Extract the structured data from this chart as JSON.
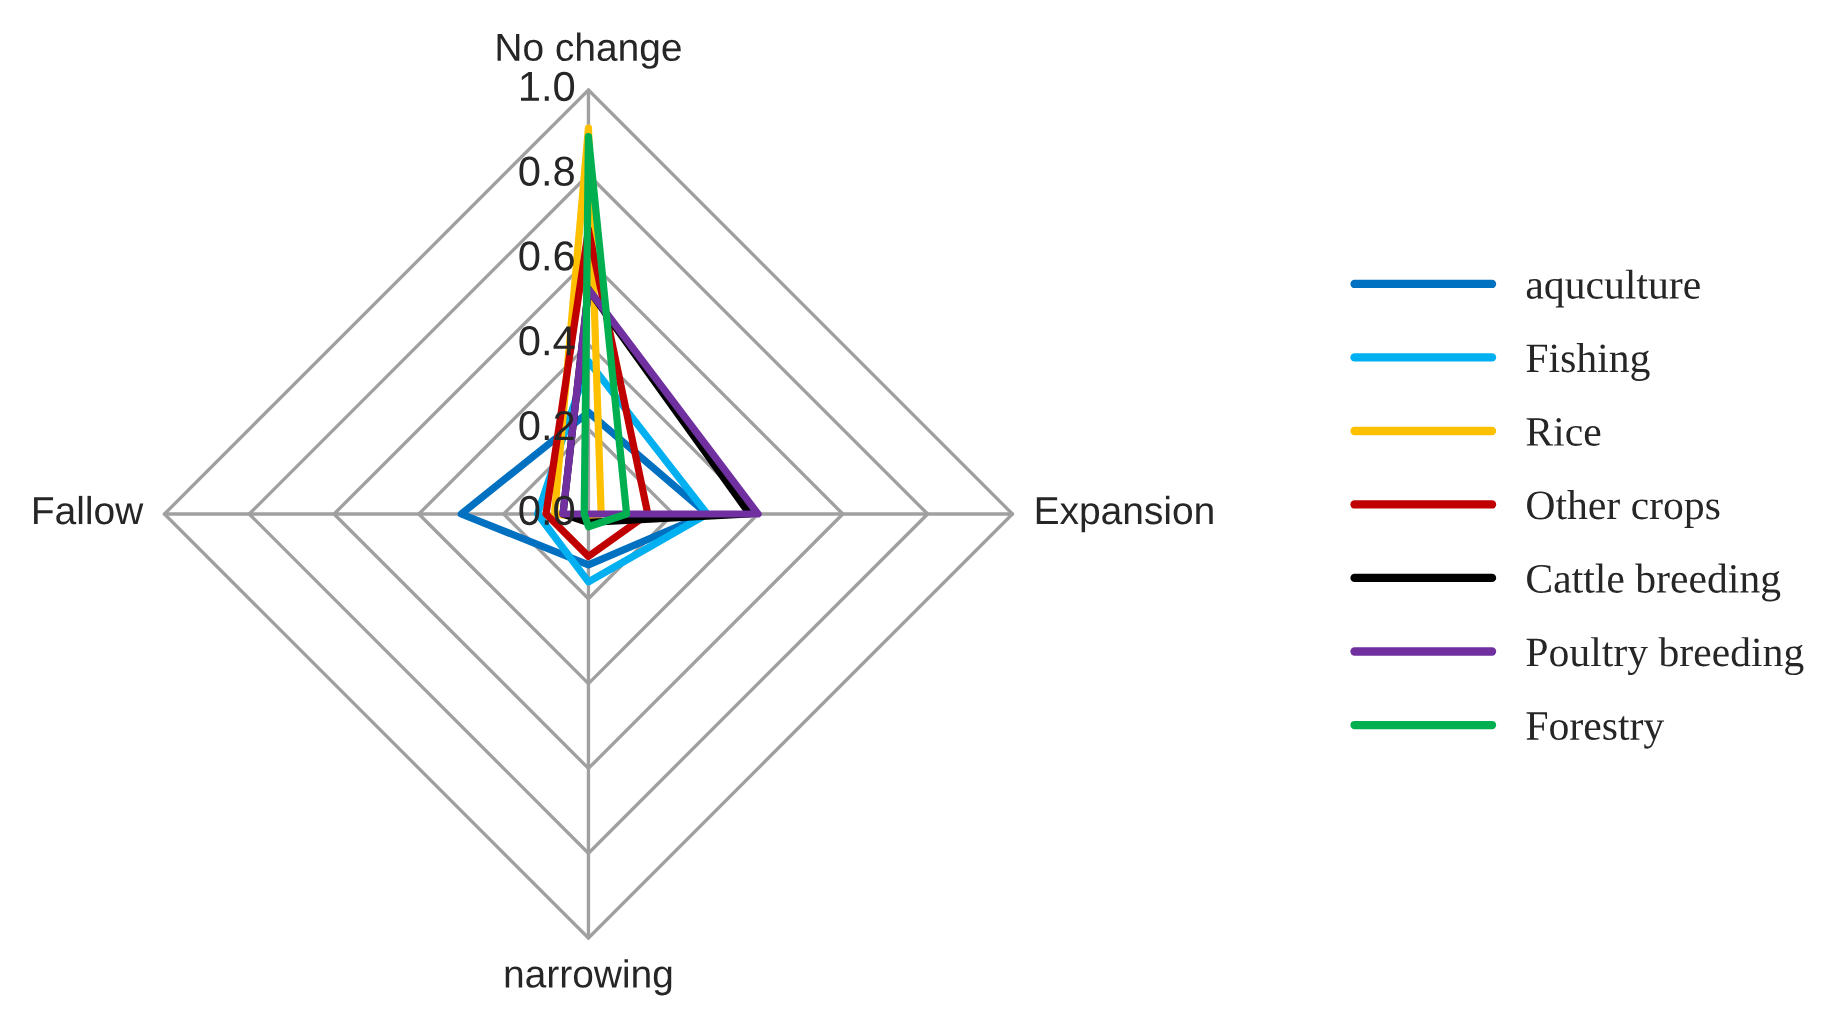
{
  "chart_data": {
    "type": "radar",
    "categories": [
      "No change",
      "Expansion",
      "narrowing",
      "Fallow"
    ],
    "ylim": [
      0,
      1.0
    ],
    "yticks": [
      {
        "value": 0,
        "label": "0.0"
      },
      {
        "value": 0.2,
        "label": "0.2"
      },
      {
        "value": 0.4,
        "label": "0.4"
      },
      {
        "value": 0.6,
        "label": "0.6"
      },
      {
        "value": 0.8,
        "label": "0.8"
      },
      {
        "value": 1.0,
        "label": "1.0"
      }
    ],
    "legend": "right",
    "grid": true,
    "series": [
      {
        "name": "aquculture",
        "color": "#0070c0",
        "values": [
          0.24,
          0.28,
          0.12,
          0.3
        ]
      },
      {
        "name": "Fishing",
        "color": "#00b0f0",
        "values": [
          0.36,
          0.28,
          0.16,
          0.12
        ]
      },
      {
        "name": "Rice",
        "color": "#ffc000",
        "values": [
          0.91,
          0.03,
          0.01,
          0.08
        ]
      },
      {
        "name": "Other crops",
        "color": "#c00000",
        "values": [
          0.67,
          0.14,
          0.1,
          0.1
        ]
      },
      {
        "name": "Cattle breeding",
        "color": "#000000",
        "values": [
          0.53,
          0.38,
          0.02,
          0.06
        ]
      },
      {
        "name": "Poultry breeding",
        "color": "#7030a0",
        "values": [
          0.53,
          0.4,
          0.0,
          0.06
        ]
      },
      {
        "name": "Forestry",
        "color": "#00b050",
        "values": [
          0.89,
          0.09,
          0.03,
          0.01
        ]
      }
    ]
  }
}
